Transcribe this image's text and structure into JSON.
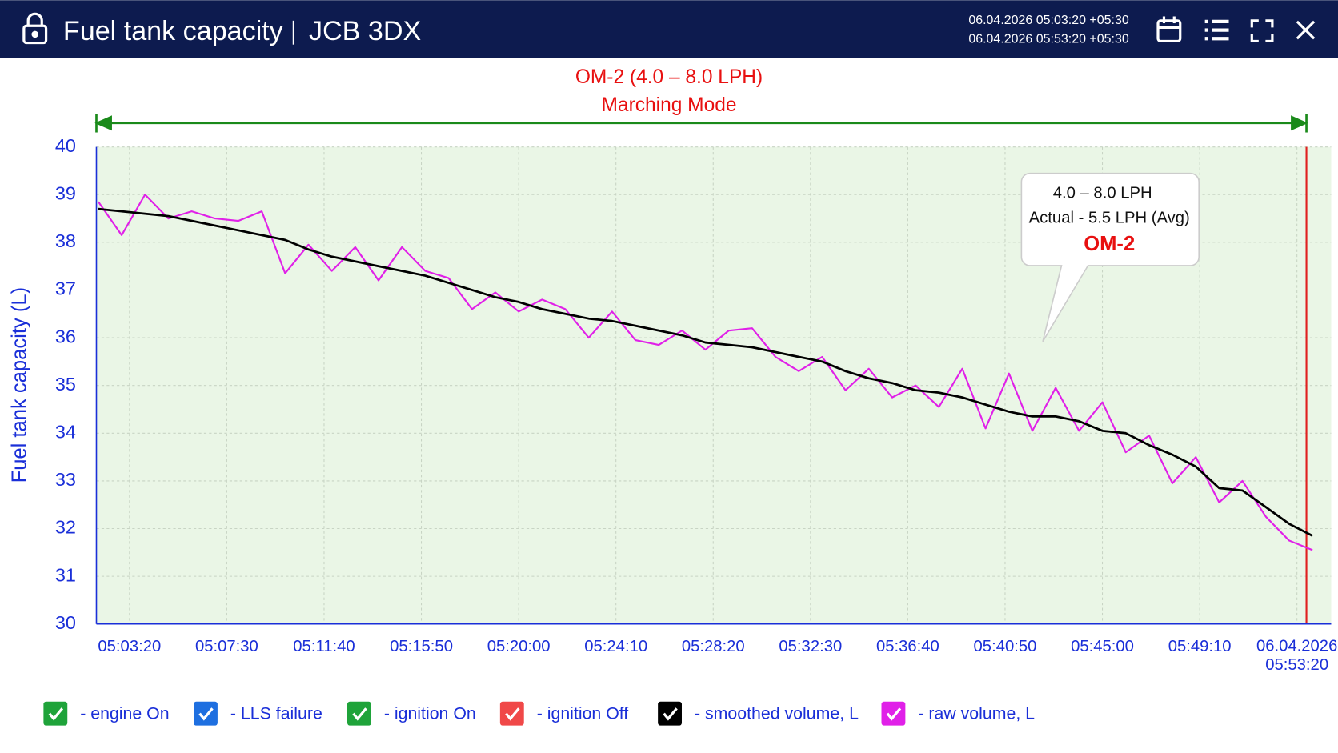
{
  "header": {
    "title": "Fuel tank capacity",
    "vehicle": "JCB 3DX",
    "date_from": "06.04.2026 05:03:20 +05:30",
    "date_to": "06.04.2026 05:53:20 +05:30"
  },
  "chart_data": {
    "type": "line",
    "mode_label": "OM-2 (4.0 – 8.0 LPH)",
    "mode_name": "Marching Mode",
    "callout": {
      "range": "4.0 – 8.0 LPH",
      "actual": "Actual - 5.5 LPH (Avg)",
      "mode": "OM-2"
    },
    "y_label": "Fuel tank capacity (L)",
    "ylim": [
      30,
      40
    ],
    "yticks": [
      30,
      31,
      32,
      33,
      34,
      35,
      36,
      37,
      38,
      39,
      40
    ],
    "xlim": [
      "05:01:55",
      "05:54:48"
    ],
    "xticks": [
      "05:03:20",
      "05:07:30",
      "05:11:40",
      "05:15:50",
      "05:20:00",
      "05:24:10",
      "05:28:20",
      "05:32:30",
      "05:36:40",
      "05:40:50",
      "05:45:00",
      "05:49:10",
      {
        "value": "05:53:20",
        "label": "06.04.2026 05:53:20"
      }
    ],
    "grid": true,
    "x": [
      "05:02:00",
      "05:03:00",
      "05:04:00",
      "05:05:00",
      "05:06:00",
      "05:07:00",
      "05:08:00",
      "05:09:00",
      "05:10:00",
      "05:11:00",
      "05:12:00",
      "05:13:00",
      "05:14:00",
      "05:15:00",
      "05:16:00",
      "05:17:00",
      "05:18:00",
      "05:19:00",
      "05:20:00",
      "05:21:00",
      "05:22:00",
      "05:23:00",
      "05:24:00",
      "05:25:00",
      "05:26:00",
      "05:27:00",
      "05:28:00",
      "05:29:00",
      "05:30:00",
      "05:31:00",
      "05:32:00",
      "05:33:00",
      "05:34:00",
      "05:35:00",
      "05:36:00",
      "05:37:00",
      "05:38:00",
      "05:39:00",
      "05:40:00",
      "05:41:00",
      "05:42:00",
      "05:43:00",
      "05:44:00",
      "05:45:00",
      "05:46:00",
      "05:47:00",
      "05:48:00",
      "05:49:00",
      "05:50:00",
      "05:51:00",
      "05:52:00",
      "05:53:00",
      "05:54:00"
    ],
    "series": [
      {
        "name": "- raw volume, L",
        "color": "#e020e8",
        "values": [
          38.85,
          38.15,
          39.0,
          38.5,
          38.65,
          38.5,
          38.45,
          38.65,
          37.35,
          37.95,
          37.4,
          37.9,
          37.2,
          37.9,
          37.4,
          37.25,
          36.6,
          36.95,
          36.55,
          36.8,
          36.6,
          36.0,
          36.55,
          35.95,
          35.85,
          36.15,
          35.75,
          36.15,
          36.2,
          35.6,
          35.3,
          35.6,
          34.9,
          35.35,
          34.75,
          35.0,
          34.55,
          35.35,
          34.1,
          35.25,
          34.05,
          34.95,
          34.05,
          34.65,
          33.6,
          33.95,
          32.95,
          33.5,
          32.55,
          33.0,
          32.25,
          31.75,
          31.55
        ]
      },
      {
        "name": "- smoothed volume, L",
        "color": "#000000",
        "values": [
          38.7,
          38.65,
          38.6,
          38.55,
          38.45,
          38.35,
          38.25,
          38.15,
          38.05,
          37.85,
          37.7,
          37.6,
          37.5,
          37.4,
          37.3,
          37.15,
          37.0,
          36.85,
          36.75,
          36.6,
          36.5,
          36.4,
          36.35,
          36.25,
          36.15,
          36.05,
          35.9,
          35.85,
          35.8,
          35.7,
          35.6,
          35.5,
          35.3,
          35.15,
          35.05,
          34.9,
          34.85,
          34.75,
          34.6,
          34.45,
          34.35,
          34.35,
          34.25,
          34.05,
          34.0,
          33.75,
          33.55,
          33.3,
          32.85,
          32.8,
          32.45,
          32.1,
          31.85
        ]
      }
    ],
    "legend_extra": [
      {
        "label": "- engine On",
        "color": "#1fa33a"
      },
      {
        "label": "- LLS failure",
        "color": "#1e6fe0"
      },
      {
        "label": "- ignition On",
        "color": "#1fa33a"
      },
      {
        "label": "- ignition Off",
        "color": "#f04848"
      }
    ]
  }
}
